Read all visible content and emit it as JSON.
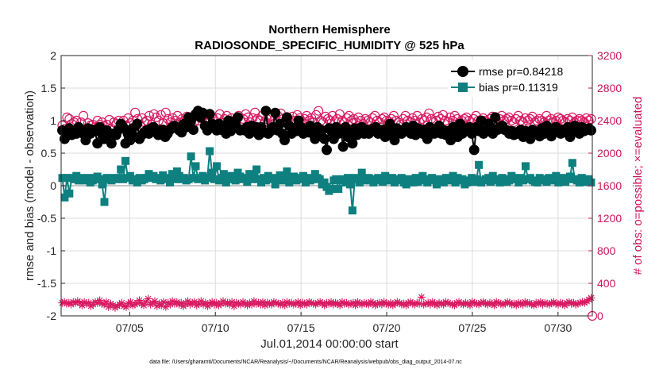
{
  "chart_data": {
    "type": "line",
    "title": "Northern Hemisphere",
    "subtitle": "RADIOSONDE_SPECIFIC_HUMIDITY @ 525 hPa",
    "xlabel": "Jul.01,2014 00:00:00 start",
    "ylabel": "rmse and bias (model - observation)",
    "ylabel_right": "# of obs: o=possible; ×=evaluated",
    "footer": "data file: /Users/gharamti/Documents/NCAR/Reanalysis/~/Documents/NCAR/Reanalysis/webpub/obs_diag_output_2014-07.nc",
    "x_range_days": [
      1,
      32
    ],
    "ylim": [
      -2,
      2
    ],
    "ylim_right": [
      0,
      3200
    ],
    "x_ticks": [
      {
        "day": 5,
        "label": "07/05"
      },
      {
        "day": 10,
        "label": "07/10"
      },
      {
        "day": 15,
        "label": "07/15"
      },
      {
        "day": 20,
        "label": "07/20"
      },
      {
        "day": 25,
        "label": "07/25"
      },
      {
        "day": 30,
        "label": "07/30"
      }
    ],
    "y_ticks": [
      {
        "value": 2,
        "label": "2"
      },
      {
        "value": 1.5,
        "label": "1.5"
      },
      {
        "value": 1,
        "label": "1"
      },
      {
        "value": 0.5,
        "label": "0.5"
      },
      {
        "value": 0,
        "label": "0"
      },
      {
        "value": -0.5,
        "label": "-0.5"
      },
      {
        "value": -1,
        "label": "-1"
      },
      {
        "value": -1.5,
        "label": "-1.5"
      },
      {
        "value": -2,
        "label": "-2"
      }
    ],
    "y_ticks_right": [
      {
        "value": 3200,
        "label": "3200"
      },
      {
        "value": 2800,
        "label": "2800"
      },
      {
        "value": 2400,
        "label": "2400"
      },
      {
        "value": 2000,
        "label": "2000"
      },
      {
        "value": 1600,
        "label": "1600"
      },
      {
        "value": 1200,
        "label": "1200"
      },
      {
        "value": 800,
        "label": "800"
      },
      {
        "value": 400,
        "label": "400"
      },
      {
        "value": 0,
        "label": "0"
      }
    ],
    "grid": true,
    "legend_position": "top-right",
    "series": [
      {
        "name": "rmse pr=0.84218",
        "axis": "left",
        "color": "#000000",
        "marker": "circle",
        "values": [
          0.85,
          0.72,
          0.8,
          0.88,
          0.78,
          0.82,
          0.8,
          0.9,
          0.84,
          0.8,
          0.7,
          0.88,
          0.8,
          0.86,
          0.84,
          0.65,
          0.9,
          0.8,
          0.72,
          0.85,
          0.8,
          0.65,
          0.8,
          0.78,
          0.86,
          0.95,
          0.9,
          0.65,
          0.8,
          0.7,
          0.88,
          0.75,
          0.95,
          0.72,
          0.78,
          0.82,
          0.85,
          0.8,
          0.88,
          0.9,
          0.84,
          0.78,
          0.85,
          0.86,
          0.75,
          0.8,
          0.86,
          0.9,
          0.92,
          0.88,
          0.85,
          0.82,
          0.95,
          0.9,
          1.05,
          1.0,
          0.86,
          1.1,
          1.15,
          1.05,
          1.12,
          0.92,
          0.85,
          1.1,
          0.95,
          0.9,
          0.85,
          0.95,
          0.86,
          0.92,
          0.8,
          1.0,
          0.84,
          0.92,
          0.95,
          1.05,
          0.85,
          0.86,
          0.85,
          0.9,
          0.8,
          0.92,
          0.85,
          0.9,
          0.78,
          0.9,
          0.82,
          1.15,
          0.8,
          0.84,
          0.9,
          1.12,
          0.85,
          0.95,
          0.8,
          0.7,
          1.05,
          0.92,
          0.8,
          0.88,
          0.84,
          1.0,
          0.9,
          0.8,
          0.86,
          0.82,
          0.92,
          0.8,
          0.72,
          0.9,
          0.8,
          0.85,
          0.72,
          0.55,
          0.88,
          0.84,
          0.72,
          0.9,
          0.8,
          0.86,
          0.6,
          0.9,
          0.75,
          0.84,
          0.65,
          0.88,
          0.78,
          0.85,
          0.9,
          0.8,
          0.86,
          0.8,
          0.84,
          0.88,
          0.9,
          0.8,
          0.82,
          0.86,
          0.75,
          0.8,
          0.95,
          0.84,
          0.7,
          0.88,
          0.82,
          0.8,
          0.86,
          0.9,
          0.85,
          0.8,
          0.92,
          0.78,
          0.88,
          0.84,
          0.8,
          0.86,
          0.72,
          0.9,
          0.84,
          0.8,
          0.86,
          0.92,
          0.8,
          0.85,
          0.78,
          0.84,
          0.7,
          0.9,
          0.84,
          0.75,
          0.95,
          0.8,
          0.88,
          0.85,
          0.9,
          0.8,
          0.55,
          0.9,
          0.84,
          1.0,
          0.8,
          0.85,
          0.95,
          0.9,
          0.8,
          1.05,
          0.86,
          0.9,
          0.92,
          0.86,
          0.85,
          0.8,
          0.84,
          0.78,
          0.82,
          0.8,
          0.86,
          0.75,
          0.84,
          0.8,
          0.72,
          0.86,
          0.8,
          0.82,
          0.76,
          0.88,
          0.8,
          0.92,
          0.84,
          0.76,
          0.86,
          0.9,
          0.85,
          0.8,
          0.86,
          0.82,
          0.9,
          0.75,
          0.84,
          0.92,
          0.86,
          0.8,
          0.9,
          0.84,
          0.86,
          0.88,
          0.85
        ]
      },
      {
        "name": "bias pr=0.11319",
        "axis": "left",
        "color": "#0e8080",
        "marker": "square",
        "values": [
          0.12,
          -0.18,
          0.12,
          -0.12,
          0.12,
          0.1,
          0.15,
          0.08,
          0.12,
          0.08,
          0.1,
          0.12,
          0.05,
          0.08,
          0.12,
          0.14,
          0.1,
          0.02,
          -0.25,
          0.12,
          0.1,
          0.08,
          0.12,
          0.1,
          0.12,
          0.25,
          0.1,
          0.38,
          0.12,
          0.15,
          0.08,
          0.1,
          0.05,
          0.12,
          0.08,
          0.1,
          0.12,
          0.18,
          0.12,
          0.15,
          0.1,
          0.12,
          0.08,
          0.16,
          0.1,
          0.12,
          0.05,
          0.18,
          0.1,
          0.22,
          0.15,
          0.1,
          0.12,
          0.08,
          0.1,
          0.45,
          0.12,
          0.3,
          0.1,
          0.12,
          0.15,
          0.08,
          0.12,
          0.53,
          0.2,
          0.1,
          0.3,
          0.08,
          0.12,
          0.18,
          0.05,
          0.1,
          0.15,
          0.12,
          0.08,
          0.2,
          0.14,
          0.1,
          0.12,
          0.06,
          0.18,
          0.1,
          0.14,
          0.25,
          0.1,
          0.05,
          0.12,
          0.08,
          0.15,
          0.1,
          0.12,
          0.02,
          0.1,
          0.16,
          0.08,
          0.12,
          0.22,
          0.05,
          0.1,
          0.14,
          0.08,
          0.1,
          0.12,
          0.15,
          0.05,
          0.12,
          0.08,
          0.1,
          0.18,
          0.12,
          0.1,
          0.02,
          0.05,
          -0.02,
          -0.08,
          -0.05,
          0.08,
          0.1,
          -0.05,
          0.08,
          0.1,
          0.05,
          0.12,
          0.02,
          -0.38,
          0.12,
          0.1,
          0.05,
          0.2,
          0.08,
          0.1,
          0.12,
          0.08,
          0.05,
          0.1,
          0.12,
          0.08,
          0.06,
          0.15,
          0.08,
          0.1,
          0.12,
          0.05,
          0.08,
          0.1,
          0.12,
          0.05,
          0.02,
          0.1,
          0.08,
          0.05,
          0.12,
          0.06,
          0.1,
          0.15,
          0.08,
          0.05,
          0.1,
          0.12,
          0.08,
          0.02,
          0.1,
          0.06,
          0.05,
          0.12,
          0.08,
          0.1,
          0.15,
          0.05,
          0.12,
          0.08,
          0.1,
          0.02,
          0.05,
          0.08,
          0.12,
          0.06,
          0.1,
          0.32,
          0.05,
          0.08,
          0.1,
          0.12,
          0.06,
          0.15,
          0.1,
          0.08,
          0.05,
          0.12,
          0.1,
          0.06,
          0.08,
          0.15,
          0.12,
          0.1,
          0.05,
          0.12,
          0.08,
          0.3,
          0.1,
          0.12,
          0.08,
          0.06,
          0.05,
          0.12,
          0.08,
          0.1,
          0.06,
          0.12,
          0.08,
          0.1,
          0.15,
          0.05,
          0.08,
          0.12,
          0.06,
          0.1,
          0.14,
          0.35,
          0.1,
          0.08,
          0.05,
          0.12,
          0.08,
          0.06,
          0.1,
          0.05
        ]
      },
      {
        "name": "possible",
        "axis": "right",
        "color": "#d71a62",
        "marker": "open-circle",
        "values": [
          2340,
          2300,
          2440,
          2420,
          2360,
          2380,
          2400,
          2320,
          2380,
          2460,
          2300,
          2370,
          2340,
          2350,
          2320,
          2400,
          2350,
          2380,
          2330,
          2350,
          2410,
          2300,
          2380,
          2360,
          2400,
          2300,
          2400,
          2340,
          2430,
          2370,
          2400,
          2500,
          2420,
          2350,
          2430,
          2380,
          2400,
          2460,
          2350,
          2480,
          2440,
          2400,
          2470,
          2370,
          2500,
          2420,
          2380,
          2430,
          2400,
          2460,
          2380,
          2420,
          2400,
          2450,
          2390,
          2410,
          2380,
          2460,
          2400,
          2430,
          2480,
          2420,
          2470,
          2400,
          2440,
          2390,
          2430,
          2480,
          2370,
          2420,
          2460,
          2400,
          2430,
          2380,
          2420,
          2460,
          2400,
          2420,
          2480,
          2440,
          2380,
          2430,
          2500,
          2420,
          2400,
          2460,
          2380,
          2420,
          2440,
          2460,
          2400,
          2380,
          2450,
          2490,
          2420,
          2400,
          2430,
          2380,
          2450,
          2400,
          2470,
          2430,
          2390,
          2420,
          2460,
          2400,
          2430,
          2380,
          2470,
          2520,
          2400,
          2380,
          2450,
          2420,
          2400,
          2460,
          2390,
          2420,
          2480,
          2400,
          2380,
          2430,
          2460,
          2400,
          2420,
          2380,
          2440,
          2400,
          2360,
          2420,
          2400,
          2380,
          2430,
          2460,
          2400,
          2380,
          2420,
          2440,
          2400,
          2390,
          2420,
          2460,
          2400,
          2380,
          2350,
          2420,
          2460,
          2400,
          2380,
          2430,
          2400,
          2460,
          2380,
          2420,
          2400,
          2440,
          2490,
          2420,
          2380,
          2400,
          2450,
          2420,
          2470,
          2400,
          2380,
          2440,
          2400,
          2460,
          2420,
          2380,
          2400,
          2420,
          2440,
          2400,
          2380,
          2420,
          2460,
          2400,
          2380,
          2430,
          2400,
          2380,
          2420,
          2450,
          2400,
          2380,
          2420,
          2460,
          2400,
          2420,
          2440,
          2400,
          2380,
          2420,
          2460,
          2400,
          2380,
          2430,
          2400,
          2420,
          2450,
          2380,
          2400,
          2420,
          2400,
          2380,
          2460,
          2400,
          2420,
          2380,
          2400,
          2440,
          2420,
          2400,
          2380,
          2420,
          2400,
          2440,
          2380,
          2400,
          2420,
          2400,
          2380,
          2430,
          2400,
          2420
        ]
      },
      {
        "name": "evaluated",
        "axis": "right",
        "color": "#d71a62",
        "marker": "star",
        "values": [
          160,
          170,
          150,
          160,
          140,
          170,
          160,
          180,
          160,
          130,
          170,
          150,
          160,
          120,
          140,
          170,
          160,
          190,
          150,
          140,
          170,
          110,
          150,
          130,
          100,
          120,
          140,
          160,
          120,
          110,
          150,
          170,
          130,
          140,
          160,
          190,
          150,
          130,
          170,
          210,
          140,
          160,
          180,
          120,
          150,
          130,
          170,
          110,
          160,
          140,
          180,
          150,
          170,
          140,
          160,
          120,
          150,
          180,
          140,
          160,
          170,
          130,
          150,
          180,
          140,
          160,
          120,
          150,
          170,
          140,
          160,
          130,
          150,
          180,
          150,
          160,
          140,
          170,
          120,
          160,
          150,
          140,
          170,
          150,
          130,
          160,
          140,
          180,
          150,
          160,
          140,
          170,
          130,
          160,
          150,
          140,
          170,
          160,
          150,
          140,
          160,
          130,
          170,
          150,
          160,
          140,
          150,
          170,
          130,
          160,
          150,
          140,
          170,
          160,
          150,
          140,
          160,
          170,
          150,
          130,
          160,
          150,
          170,
          140,
          160,
          150,
          130,
          170,
          150,
          160,
          140,
          150,
          160,
          130,
          170,
          150,
          140,
          160,
          150,
          140,
          170,
          160,
          130,
          150,
          160,
          140,
          170,
          150,
          140,
          160,
          130,
          150,
          170,
          160,
          140,
          150,
          130,
          160,
          170,
          150,
          140,
          160,
          150,
          230,
          140,
          150,
          160,
          140,
          170,
          150,
          130,
          160,
          150,
          140,
          170,
          160,
          150,
          140,
          130,
          160,
          170,
          150,
          140,
          160,
          150,
          130,
          170,
          160,
          150,
          140,
          160,
          170,
          150,
          140,
          160,
          150,
          130,
          170,
          160,
          150,
          140,
          150,
          170,
          160,
          140,
          150,
          130,
          160,
          150,
          140,
          170,
          150,
          160,
          140,
          130,
          160,
          150,
          170,
          140,
          160,
          150,
          140,
          160,
          170,
          150,
          140,
          160,
          150,
          130,
          160,
          170,
          150,
          160,
          140,
          150,
          160,
          170,
          160,
          180,
          200,
          220
        ]
      }
    ]
  }
}
